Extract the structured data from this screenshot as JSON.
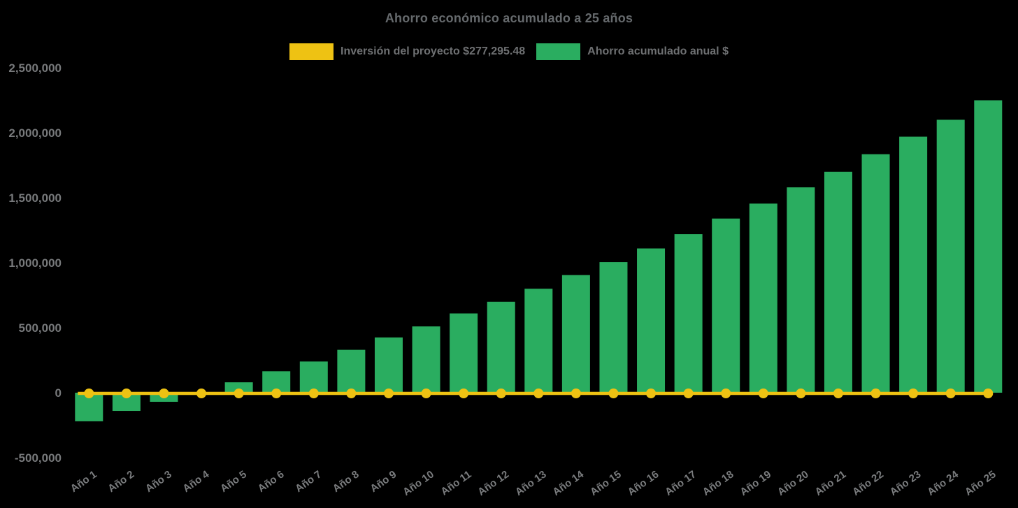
{
  "chart_data": {
    "type": "bar",
    "title": "Ahorro económico acumulado a 25 años",
    "categories": [
      "Año 1",
      "Año 2",
      "Año 3",
      "Año 4",
      "Año 5",
      "Año 6",
      "Año 7",
      "Año 8",
      "Año 9",
      "Año 10",
      "Año 11",
      "Año 12",
      "Año 13",
      "Año 14",
      "Año 15",
      "Año 16",
      "Año 17",
      "Año 18",
      "Año 19",
      "Año 20",
      "Año 21",
      "Año 22",
      "Año 23",
      "Año 24",
      "Año 25"
    ],
    "series": [
      {
        "name": "Inversión del proyecto $277,295.48",
        "type": "line",
        "color": "#eec213",
        "values": [
          0,
          0,
          0,
          0,
          0,
          0,
          0,
          0,
          0,
          0,
          0,
          0,
          0,
          0,
          0,
          0,
          0,
          0,
          0,
          0,
          0,
          0,
          0,
          0,
          0
        ]
      },
      {
        "name": "Ahorro acumulado anual $",
        "type": "bar",
        "color": "#2aad60",
        "values": [
          -220000,
          -140000,
          -70000,
          5000,
          80000,
          165000,
          240000,
          330000,
          425000,
          510000,
          610000,
          700000,
          800000,
          905000,
          1005000,
          1110000,
          1220000,
          1340000,
          1455000,
          1580000,
          1700000,
          1835000,
          1970000,
          2100000,
          2250000
        ]
      }
    ],
    "ylim": [
      -500000,
      2500000
    ],
    "yticks": [
      {
        "value": 2500000,
        "label": "2,500,000"
      },
      {
        "value": 2000000,
        "label": "2,000,000"
      },
      {
        "value": 1500000,
        "label": "1,500,000"
      },
      {
        "value": 1000000,
        "label": "1,000,000"
      },
      {
        "value": 500000,
        "label": "500,000"
      },
      {
        "value": 0,
        "label": "0"
      },
      {
        "value": -500000,
        "label": "-500,000"
      }
    ],
    "grid": false,
    "legend_position": "top",
    "x_tick_rotation_deg": -35
  }
}
